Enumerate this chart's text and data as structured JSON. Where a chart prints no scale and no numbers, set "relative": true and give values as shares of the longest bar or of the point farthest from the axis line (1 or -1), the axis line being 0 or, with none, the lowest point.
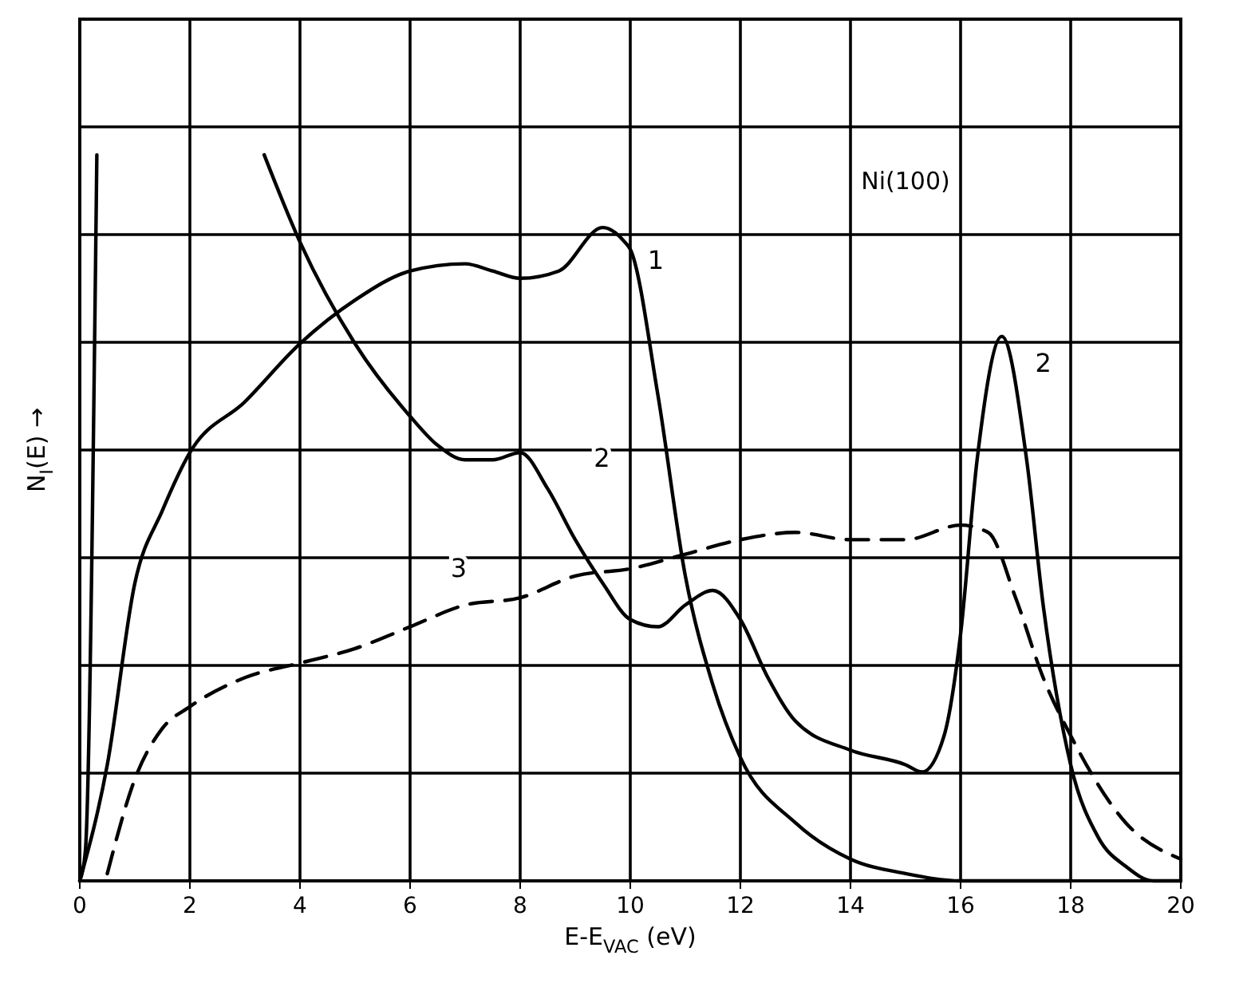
{
  "chart_data": {
    "type": "line",
    "relative": true,
    "xlabel": "E-E$_{VAC}$ (eV)",
    "ylabel": "N$_{I}$(E) →",
    "xlim": [
      0,
      20
    ],
    "xticks": [
      0,
      2,
      4,
      6,
      8,
      10,
      12,
      14,
      16,
      18,
      20
    ],
    "grid": true,
    "marker": "none",
    "series": [
      {
        "color": "#000000",
        "line_style": "solid",
        "x": [
          0,
          0.5,
          1,
          1.5,
          2,
          3,
          4,
          5,
          6,
          7,
          7.5,
          8,
          8.7,
          9.5,
          9.9,
          10,
          10.5,
          11,
          11.5,
          12,
          13,
          14,
          15,
          16,
          18
        ],
        "values": [
          0,
          0.16,
          0.41,
          0.51,
          0.59,
          0.66,
          0.74,
          0.8,
          0.84,
          0.85,
          0.84,
          0.83,
          0.84,
          0.9,
          0.88,
          0.87,
          0.67,
          0.42,
          0.27,
          0.17,
          0.08,
          0.03,
          0.01,
          0,
          0
        ]
      },
      {
        "color": "#000000",
        "line_style": "solid",
        "x": [
          0,
          0.1,
          0.31,
          2,
          3.35,
          4,
          5,
          6,
          6.5,
          7,
          7.5,
          8,
          8.5,
          9,
          9.5,
          10,
          10.5,
          11,
          11.5,
          12,
          12.5,
          13,
          14,
          15,
          15.3,
          15.7,
          16,
          16.3,
          16.75,
          17.2,
          17.5,
          18,
          18.5,
          19,
          19.5,
          20
        ],
        "values": [
          0,
          0.04,
          1.0,
          null,
          1.0,
          0.88,
          0.74,
          0.64,
          0.6,
          0.58,
          0.58,
          0.59,
          0.54,
          0.47,
          0.41,
          0.36,
          0.35,
          0.38,
          0.4,
          0.36,
          0.28,
          0.22,
          0.18,
          0.16,
          0.15,
          0.2,
          0.34,
          0.58,
          0.75,
          0.58,
          0.38,
          0.16,
          0.06,
          0.02,
          0,
          0
        ]
      },
      {
        "color": "#000000",
        "line_style": "dashed",
        "x": [
          0.5,
          1,
          1.5,
          2,
          3,
          4,
          5,
          6,
          7,
          8,
          9,
          10,
          11,
          12,
          13,
          14,
          15,
          16,
          16.5,
          17,
          17.5,
          18,
          19,
          20
        ],
        "values": [
          0.01,
          0.14,
          0.21,
          0.24,
          0.28,
          0.3,
          0.32,
          0.35,
          0.38,
          0.39,
          0.42,
          0.43,
          0.45,
          0.47,
          0.48,
          0.47,
          0.47,
          0.49,
          0.48,
          0.39,
          0.28,
          0.2,
          0.08,
          0.03
        ]
      }
    ],
    "annotations": [
      {
        "text": "1",
        "x": 10,
        "y": 0.87
      },
      {
        "text": "2",
        "x": 8.5,
        "y": 0.54
      },
      {
        "text": "2",
        "x": 16.75,
        "y": 0.75
      },
      {
        "text": "3",
        "x": 7,
        "y": 0.38
      },
      "Ni(100)"
    ]
  }
}
